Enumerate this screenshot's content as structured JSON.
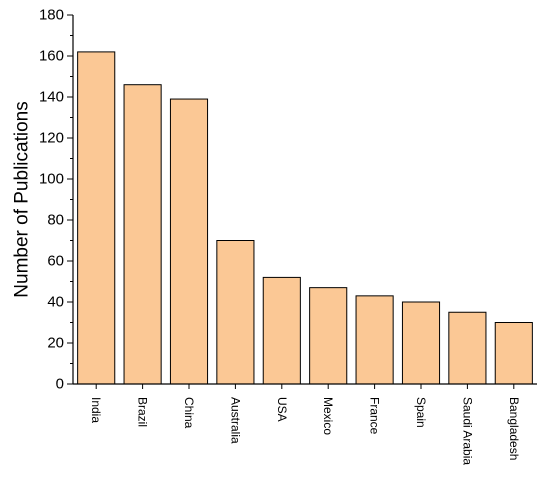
{
  "chart_data": {
    "type": "bar",
    "title": "",
    "xlabel": "",
    "ylabel": "Number of Publications",
    "categories": [
      "India",
      "Brazil",
      "China",
      "Australia",
      "USA",
      "Mexico",
      "France",
      "Spain",
      "Saudi Arabia",
      "Bangladesh"
    ],
    "values": [
      162,
      146,
      139,
      70,
      52,
      47,
      43,
      40,
      35,
      30
    ],
    "ylim": [
      0,
      180
    ],
    "yticks": [
      "0",
      "20",
      "40",
      "60",
      "80",
      "100",
      "120",
      "140",
      "160",
      "180"
    ],
    "grid": false,
    "legend": "none",
    "colors": {
      "bar_fill": "#FBC895",
      "bar_stroke": "#000000",
      "axis": "#000000"
    }
  }
}
